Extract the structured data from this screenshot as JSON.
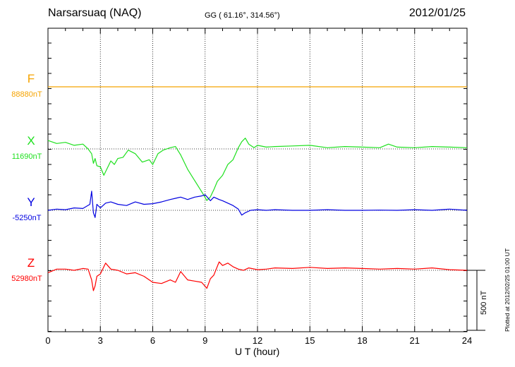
{
  "header": {
    "station": "Narsarsuaq (NAQ)",
    "coords": "GG ( 61.16°, 314.56°)",
    "date": "2012/01/25"
  },
  "footer": {
    "plotted": "Plotted at 2012/02/25 01:00 UT"
  },
  "chart_data": {
    "type": "line",
    "title": "Narsarsuaq (NAQ)",
    "xlabel": "U T (hour)",
    "xlim": [
      0,
      24
    ],
    "xticks": [
      0,
      3,
      6,
      9,
      12,
      15,
      18,
      21,
      24
    ],
    "xtick_labels": [
      "0",
      "3",
      "6",
      "9",
      "12",
      "15",
      "18",
      "21",
      "24"
    ],
    "grid": true,
    "scale_bar": {
      "value": 500,
      "label": "500 nT"
    },
    "series": [
      {
        "name": "F",
        "baseline_label": "88880nT",
        "baseline": 88880,
        "color": "#f5a300",
        "x": [
          0,
          24
        ],
        "y": [
          88880,
          88880
        ]
      },
      {
        "name": "X",
        "baseline_label": "11690nT",
        "baseline": 11690,
        "color": "#1ee01e",
        "x": [
          0,
          0.5,
          1,
          1.5,
          2,
          2.3,
          2.5,
          2.6,
          2.7,
          2.8,
          3,
          3.2,
          3.4,
          3.6,
          3.8,
          4,
          4.3,
          4.6,
          5,
          5.4,
          5.8,
          6,
          6.3,
          6.6,
          7,
          7.3,
          7.6,
          8,
          8.3,
          8.6,
          8.9,
          9.1,
          9.3,
          9.5,
          9.7,
          10,
          10.3,
          10.6,
          10.9,
          11.1,
          11.3,
          11.5,
          11.8,
          12,
          12.5,
          13,
          14,
          15,
          16,
          17,
          18,
          19,
          19.5,
          20,
          21,
          22,
          23,
          24
        ],
        "y": [
          11760,
          11735,
          11745,
          11720,
          11730,
          11690,
          11650,
          11570,
          11610,
          11550,
          11540,
          11470,
          11530,
          11590,
          11560,
          11610,
          11620,
          11680,
          11650,
          11580,
          11600,
          11560,
          11650,
          11680,
          11700,
          11710,
          11640,
          11520,
          11450,
          11380,
          11310,
          11260,
          11290,
          11350,
          11420,
          11470,
          11560,
          11600,
          11700,
          11750,
          11780,
          11730,
          11700,
          11720,
          11705,
          11710,
          11715,
          11720,
          11700,
          11710,
          11705,
          11700,
          11730,
          11705,
          11700,
          11710,
          11705,
          11700
        ]
      },
      {
        "name": "Y",
        "baseline_label": "-5250nT",
        "baseline": -5250,
        "color": "#0000e0",
        "x": [
          0,
          0.5,
          1,
          1.5,
          2,
          2.4,
          2.5,
          2.6,
          2.7,
          2.8,
          3,
          3.3,
          3.6,
          4,
          4.5,
          5,
          5.5,
          6,
          6.5,
          7,
          7.3,
          7.6,
          8,
          8.4,
          8.8,
          9,
          9.3,
          9.5,
          9.8,
          10,
          10.3,
          10.6,
          10.9,
          11.1,
          11.3,
          11.6,
          12,
          12.5,
          13,
          14,
          15,
          16,
          17,
          18,
          19,
          20,
          21,
          22,
          23,
          24
        ],
        "y": [
          -5250,
          -5240,
          -5245,
          -5230,
          -5235,
          -5200,
          -5090,
          -5270,
          -5310,
          -5200,
          -5230,
          -5190,
          -5180,
          -5200,
          -5210,
          -5180,
          -5200,
          -5195,
          -5180,
          -5160,
          -5150,
          -5140,
          -5160,
          -5140,
          -5130,
          -5120,
          -5170,
          -5140,
          -5160,
          -5170,
          -5190,
          -5210,
          -5240,
          -5290,
          -5270,
          -5250,
          -5245,
          -5250,
          -5245,
          -5250,
          -5250,
          -5245,
          -5250,
          -5250,
          -5248,
          -5250,
          -5245,
          -5250,
          -5240,
          -5250
        ]
      },
      {
        "name": "Z",
        "baseline_label": "52980nT",
        "baseline": 52980,
        "color": "#ff0000",
        "x": [
          0,
          0.5,
          1,
          1.5,
          2,
          2.3,
          2.5,
          2.6,
          2.7,
          2.8,
          3,
          3.3,
          3.6,
          4,
          4.5,
          5,
          5.5,
          6,
          6.5,
          7,
          7.3,
          7.6,
          8,
          8.4,
          8.8,
          9.1,
          9.3,
          9.5,
          9.8,
          10,
          10.3,
          10.6,
          10.9,
          11.2,
          11.5,
          12,
          12.5,
          13,
          14,
          15,
          16,
          17,
          18,
          19,
          20,
          21,
          22,
          23,
          24
        ],
        "y": [
          52960,
          52990,
          52990,
          52980,
          52995,
          52990,
          52900,
          52810,
          52850,
          52930,
          52950,
          53040,
          52990,
          52980,
          52950,
          52960,
          52930,
          52880,
          52870,
          52900,
          52880,
          52970,
          52900,
          52890,
          52880,
          52830,
          52910,
          52940,
          53050,
          53020,
          53040,
          53010,
          52990,
          52980,
          53000,
          52985,
          52990,
          53000,
          52995,
          53005,
          52995,
          53000,
          52995,
          52990,
          52995,
          52990,
          53000,
          52985,
          52980
        ]
      }
    ]
  }
}
